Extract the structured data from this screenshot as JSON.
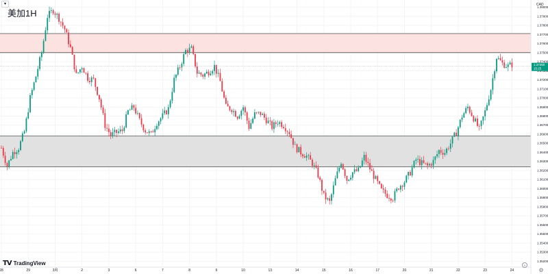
{
  "header": {
    "symbol_title": "美加1H",
    "currency": "CAD",
    "menu_glyph": "▾"
  },
  "branding": {
    "logo_mark": "TV",
    "logo_text": "TradingView"
  },
  "controls": {
    "scroll_glyph": "»",
    "settings_glyph": "⚙"
  },
  "colors": {
    "bull": "#089981",
    "bear": "#f23645",
    "grid": "#f3f4f6",
    "zone_resistance_fill": "#fde2e2",
    "zone_support_fill": "#e1e1e1",
    "zone_border": "#4a4a4a",
    "price_tag_bg": "#089981"
  },
  "chart_data": {
    "type": "candlestick",
    "title": "美加1H",
    "currency": "CAD",
    "ylim": [
      1.3515,
      1.3808
    ],
    "y_ticks": [
      "1.38000",
      "1.37900",
      "1.37800",
      "1.37700",
      "1.37600",
      "1.37500",
      "1.37400",
      "1.37300",
      "1.37200",
      "1.37100",
      "1.37000",
      "1.36900",
      "1.36800",
      "1.36700",
      "1.36600",
      "1.36500",
      "1.36400",
      "1.36300",
      "1.36200",
      "1.36100",
      "1.36000",
      "1.35900",
      "1.35800",
      "1.35700",
      "1.35600",
      "1.35500",
      "1.35400",
      "1.35300",
      "1.35200"
    ],
    "x_ticks": [
      {
        "label": "28",
        "bar": 0
      },
      {
        "label": "29",
        "bar": 14
      },
      {
        "label": "3月",
        "bar": 28
      },
      {
        "label": "2",
        "bar": 42
      },
      {
        "label": "3",
        "bar": 56
      },
      {
        "label": "6",
        "bar": 70
      },
      {
        "label": "7",
        "bar": 84
      },
      {
        "label": "8",
        "bar": 98
      },
      {
        "label": "9",
        "bar": 112
      },
      {
        "label": "10",
        "bar": 126
      },
      {
        "label": "13",
        "bar": 140
      },
      {
        "label": "14",
        "bar": 154
      },
      {
        "label": "15",
        "bar": 168
      },
      {
        "label": "16",
        "bar": 182
      },
      {
        "label": "17",
        "bar": 196
      },
      {
        "label": "20",
        "bar": 210
      },
      {
        "label": "21",
        "bar": 224
      },
      {
        "label": "22",
        "bar": 238
      },
      {
        "label": "23",
        "bar": 252
      },
      {
        "label": "24",
        "bar": 266
      }
    ],
    "total_bars": 273,
    "zones": [
      {
        "name": "resistance",
        "low": 1.375,
        "high": 1.3771
      },
      {
        "name": "support",
        "low": 1.3624,
        "high": 1.3658
      }
    ],
    "current_price": {
      "label": "1.37350",
      "countdown": "15:25",
      "value": 1.3735
    },
    "close_anchors": [
      [
        0,
        1.3645
      ],
      [
        3,
        1.3625
      ],
      [
        6,
        1.364
      ],
      [
        9,
        1.3645
      ],
      [
        12,
        1.3663
      ],
      [
        15,
        1.37
      ],
      [
        18,
        1.3724
      ],
      [
        21,
        1.375
      ],
      [
        24,
        1.379
      ],
      [
        27,
        1.3797
      ],
      [
        30,
        1.3788
      ],
      [
        33,
        1.3776
      ],
      [
        36,
        1.3755
      ],
      [
        39,
        1.3725
      ],
      [
        42,
        1.3735
      ],
      [
        45,
        1.3722
      ],
      [
        48,
        1.372
      ],
      [
        51,
        1.37
      ],
      [
        54,
        1.367
      ],
      [
        57,
        1.3659
      ],
      [
        60,
        1.3662
      ],
      [
        63,
        1.3664
      ],
      [
        66,
        1.3685
      ],
      [
        69,
        1.369
      ],
      [
        72,
        1.3675
      ],
      [
        75,
        1.3664
      ],
      [
        78,
        1.366
      ],
      [
        81,
        1.3673
      ],
      [
        84,
        1.368
      ],
      [
        87,
        1.3688
      ],
      [
        90,
        1.372
      ],
      [
        93,
        1.3735
      ],
      [
        96,
        1.3752
      ],
      [
        99,
        1.3754
      ],
      [
        102,
        1.3728
      ],
      [
        105,
        1.3725
      ],
      [
        108,
        1.3729
      ],
      [
        111,
        1.3735
      ],
      [
        114,
        1.3718
      ],
      [
        117,
        1.369
      ],
      [
        120,
        1.3688
      ],
      [
        123,
        1.368
      ],
      [
        126,
        1.369
      ],
      [
        129,
        1.3668
      ],
      [
        132,
        1.3682
      ],
      [
        135,
        1.3683
      ],
      [
        138,
        1.3676
      ],
      [
        141,
        1.3668
      ],
      [
        144,
        1.3674
      ],
      [
        147,
        1.367
      ],
      [
        150,
        1.3662
      ],
      [
        153,
        1.3646
      ],
      [
        156,
        1.364
      ],
      [
        159,
        1.3636
      ],
      [
        162,
        1.3628
      ],
      [
        165,
        1.3615
      ],
      [
        168,
        1.3592
      ],
      [
        171,
        1.3585
      ],
      [
        174,
        1.361
      ],
      [
        177,
        1.363
      ],
      [
        180,
        1.361
      ],
      [
        183,
        1.3618
      ],
      [
        186,
        1.362
      ],
      [
        189,
        1.3635
      ],
      [
        192,
        1.3622
      ],
      [
        195,
        1.361
      ],
      [
        198,
        1.3598
      ],
      [
        201,
        1.3593
      ],
      [
        204,
        1.359
      ],
      [
        207,
        1.3602
      ],
      [
        210,
        1.3608
      ],
      [
        213,
        1.3618
      ],
      [
        216,
        1.3632
      ],
      [
        219,
        1.3628
      ],
      [
        222,
        1.3625
      ],
      [
        225,
        1.363
      ],
      [
        228,
        1.3642
      ],
      [
        231,
        1.364
      ],
      [
        234,
        1.365
      ],
      [
        237,
        1.3662
      ],
      [
        240,
        1.368
      ],
      [
        243,
        1.369
      ],
      [
        246,
        1.3678
      ],
      [
        249,
        1.3665
      ],
      [
        252,
        1.3685
      ],
      [
        255,
        1.371
      ],
      [
        258,
        1.3745
      ],
      [
        261,
        1.3738
      ],
      [
        264,
        1.3735
      ],
      [
        266,
        1.3737
      ]
    ]
  }
}
